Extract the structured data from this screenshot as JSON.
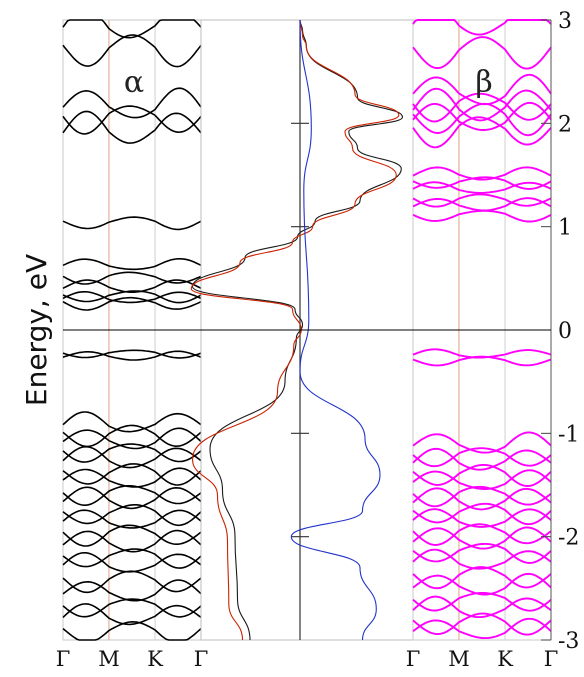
{
  "chart_data": {
    "type": "line",
    "ylabel": "Energy, eV",
    "ylim": [
      -3,
      3
    ],
    "yticks": [
      {
        "value": 3,
        "label": "3"
      },
      {
        "value": 2,
        "label": "2"
      },
      {
        "value": 1,
        "label": "1"
      },
      {
        "value": 0,
        "label": "0"
      },
      {
        "value": -1,
        "label": "-1"
      },
      {
        "value": -2,
        "label": "-2"
      },
      {
        "value": -3,
        "label": "-3"
      }
    ],
    "kpath_labels": [
      "Γ",
      "M",
      "K",
      "Γ"
    ],
    "colors": {
      "alpha_bands": "#000000",
      "beta_bands": "#ff00ff",
      "dos_alpha": "#1a1a1a",
      "dos_red": "#cc2200",
      "dos_blue": "#2233cc",
      "high_symmetry_line": "#e0a080",
      "fermi_line": "#000000"
    },
    "panels": [
      {
        "id": "alpha",
        "label": "α",
        "kind": "band_structure",
        "band_color": "#000000",
        "band_energies_at_gamma": [
          2.93,
          2.74,
          2.15,
          2.08,
          1.92,
          1.05,
          0.62,
          0.52,
          0.41,
          0.34,
          0.3,
          0.27,
          -0.26,
          -0.22,
          -0.92,
          -1.0,
          -1.08,
          -1.16,
          -1.26,
          -1.37,
          -1.46,
          -1.57,
          -1.65,
          -1.76,
          -1.86,
          -1.96,
          -2.07,
          -2.18,
          -2.28,
          -2.41,
          -2.55,
          -2.66,
          -2.78,
          -2.9
        ]
      },
      {
        "id": "dos",
        "kind": "density_of_states",
        "curves": [
          {
            "color": "alpha",
            "points": [
              [
                0.0,
                3.0
              ],
              [
                0.1,
                2.9
              ],
              [
                0.25,
                2.75
              ],
              [
                2.3,
                2.25
              ],
              [
                4.1,
                2.06
              ],
              [
                1.95,
                1.92
              ],
              [
                2.3,
                1.76
              ],
              [
                4.05,
                1.56
              ],
              [
                2.4,
                1.25
              ],
              [
                0.6,
                1.05
              ],
              [
                -0.1,
                0.9
              ],
              [
                -2.2,
                0.7
              ],
              [
                -4.3,
                0.42
              ],
              [
                -0.2,
                0.2
              ],
              [
                0.1,
                0.05
              ],
              [
                -0.15,
                -0.08
              ],
              [
                -0.6,
                -0.5
              ],
              [
                -3.6,
                -1.15
              ],
              [
                -3.1,
                -1.55
              ],
              [
                -2.6,
                -2.0
              ],
              [
                -2.5,
                -2.6
              ],
              [
                -2.0,
                -3.0
              ]
            ]
          },
          {
            "color": "red",
            "points": [
              [
                0.0,
                3.0
              ],
              [
                0.1,
                2.85
              ],
              [
                0.25,
                2.75
              ],
              [
                2.2,
                2.28
              ],
              [
                3.95,
                2.08
              ],
              [
                1.8,
                1.92
              ],
              [
                2.1,
                1.76
              ],
              [
                3.85,
                1.5
              ],
              [
                2.2,
                1.22
              ],
              [
                0.5,
                1.0
              ],
              [
                -0.3,
                0.85
              ],
              [
                -2.4,
                0.65
              ],
              [
                -4.35,
                0.4
              ],
              [
                -0.3,
                0.2
              ],
              [
                0.05,
                0.0
              ],
              [
                -0.25,
                -0.15
              ],
              [
                -0.9,
                -0.6
              ],
              [
                -4.3,
                -1.25
              ],
              [
                -3.3,
                -1.6
              ],
              [
                -2.9,
                -2.05
              ],
              [
                -2.85,
                -2.65
              ],
              [
                -2.3,
                -3.0
              ]
            ]
          },
          {
            "color": "beta",
            "points": [
              [
                0.0,
                3.0
              ],
              [
                0.45,
                1.95
              ],
              [
                0.15,
                1.35
              ],
              [
                0.35,
                0.1
              ],
              [
                0.0,
                -0.4
              ],
              [
                2.6,
                -1.05
              ],
              [
                3.2,
                -1.4
              ],
              [
                2.5,
                -1.75
              ],
              [
                -0.35,
                -2.0
              ],
              [
                2.4,
                -2.3
              ],
              [
                3.05,
                -2.7
              ],
              [
                2.5,
                -3.0
              ]
            ]
          }
        ],
        "center_line_ticks_energy": [
          2.0,
          1.0,
          -1.0,
          -2.0
        ]
      },
      {
        "id": "beta",
        "label": "β",
        "kind": "band_structure",
        "band_color": "#ff00ff",
        "band_energies_at_gamma": [
          2.96,
          2.72,
          2.28,
          2.2,
          2.14,
          2.08,
          2.02,
          1.96,
          1.5,
          1.44,
          1.36,
          1.27,
          1.2,
          1.12,
          -0.24,
          -0.29,
          -1.12,
          -1.2,
          -1.28,
          -1.38,
          -1.48,
          -1.58,
          -1.66,
          -1.75,
          -1.85,
          -1.95,
          -2.04,
          -2.13,
          -2.25,
          -2.37,
          -2.49,
          -2.6,
          -2.71,
          -2.82,
          -2.92
        ]
      }
    ],
    "grid": false,
    "legend": "none"
  }
}
